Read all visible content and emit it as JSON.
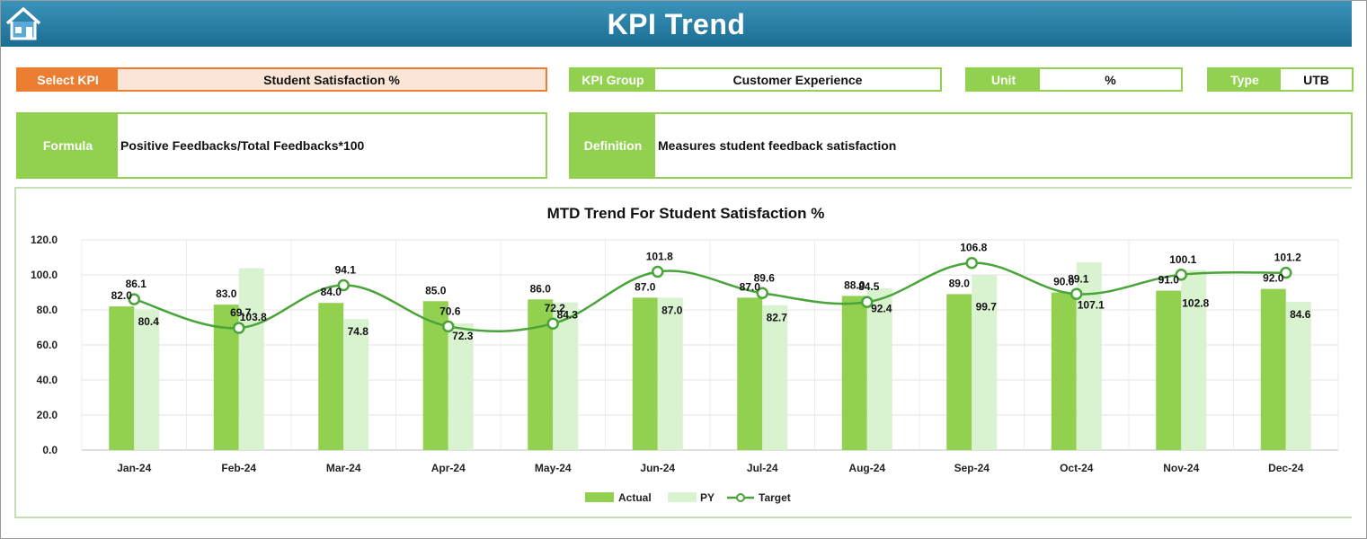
{
  "header": {
    "title": "KPI Trend",
    "home_icon": "home-icon"
  },
  "fields": {
    "select_kpi": {
      "label": "Select KPI",
      "value": "Student Satisfaction %"
    },
    "kpi_group": {
      "label": "KPI Group",
      "value": "Customer Experience"
    },
    "unit": {
      "label": "Unit",
      "value": "%"
    },
    "type": {
      "label": "Type",
      "value": "UTB"
    },
    "formula": {
      "label": "Formula",
      "value": "Positive Feedbacks/Total Feedbacks*100"
    },
    "definition": {
      "label": "Definition",
      "value": "Measures student feedback satisfaction"
    }
  },
  "colors": {
    "accent_green": "#92d050",
    "select_orange": "#ed7d31",
    "banner_blue": "#1f7aa3",
    "py_green": "#d9f2d0",
    "target_line": "#4aa43a"
  },
  "chart_data": {
    "type": "bar",
    "title": "MTD Trend For Student Satisfaction %",
    "categories": [
      "Jan-24",
      "Feb-24",
      "Mar-24",
      "Apr-24",
      "May-24",
      "Jun-24",
      "Jul-24",
      "Aug-24",
      "Sep-24",
      "Oct-24",
      "Nov-24",
      "Dec-24"
    ],
    "series": [
      {
        "name": "Actual",
        "type": "bar",
        "values": [
          82.0,
          83.0,
          84.0,
          85.0,
          86.0,
          87.0,
          87.0,
          88.0,
          89.0,
          90.0,
          91.0,
          92.0
        ]
      },
      {
        "name": "PY",
        "type": "bar",
        "values": [
          80.4,
          103.8,
          74.8,
          72.3,
          84.3,
          87.0,
          82.7,
          92.4,
          99.7,
          107.1,
          102.8,
          84.6
        ]
      },
      {
        "name": "Target",
        "type": "line",
        "values": [
          86.1,
          69.7,
          94.1,
          70.6,
          72.2,
          101.8,
          89.6,
          84.5,
          106.8,
          89.1,
          100.1,
          101.2
        ]
      }
    ],
    "ylim": [
      0,
      120
    ],
    "yticks": [
      "0.0",
      "20.0",
      "40.0",
      "60.0",
      "80.0",
      "100.0",
      "120.0"
    ],
    "grid": true,
    "legend": "bottom"
  }
}
